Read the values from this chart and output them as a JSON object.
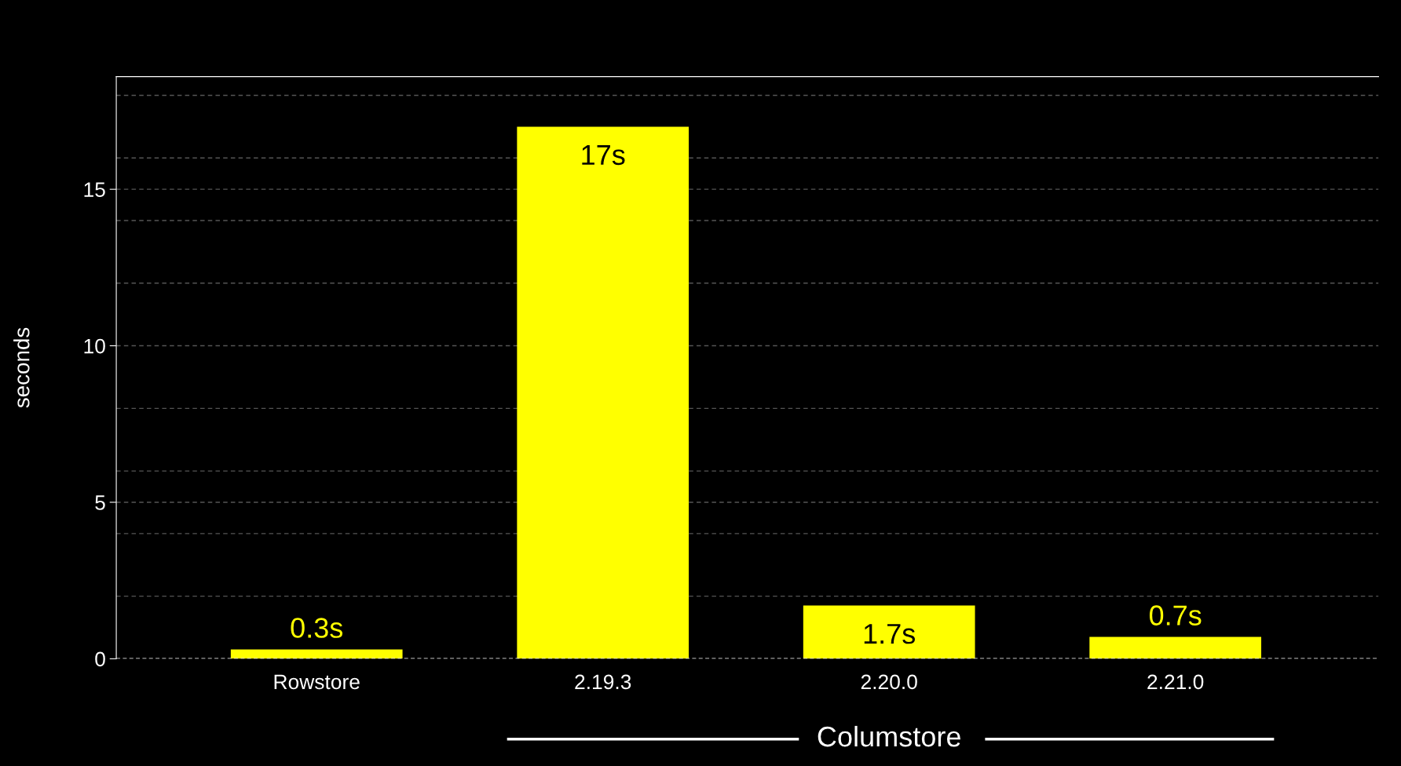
{
  "chart_data": {
    "type": "bar",
    "ylabel": "seconds",
    "categories": [
      "Rowstore",
      "2.19.3",
      "2.20.0",
      "2.21.0"
    ],
    "values": [
      0.3,
      17,
      1.7,
      0.7
    ],
    "value_labels": [
      "0.3s",
      "17s",
      "1.7s",
      "0.7s"
    ],
    "color": "#ffff00",
    "ylim": [
      0,
      18.6
    ],
    "yticks": [
      0,
      {
        "value": 2,
        "label": null
      },
      {
        "value": 4,
        "label": null
      },
      5,
      {
        "value": 6,
        "label": null
      },
      {
        "value": 8,
        "label": null
      },
      10,
      {
        "value": 12,
        "label": null
      },
      {
        "value": 14,
        "label": null
      },
      15,
      {
        "value": 16,
        "label": null
      },
      {
        "value": 18,
        "label": null
      }
    ],
    "grid": "y",
    "annotations": [
      "Columstore"
    ]
  }
}
